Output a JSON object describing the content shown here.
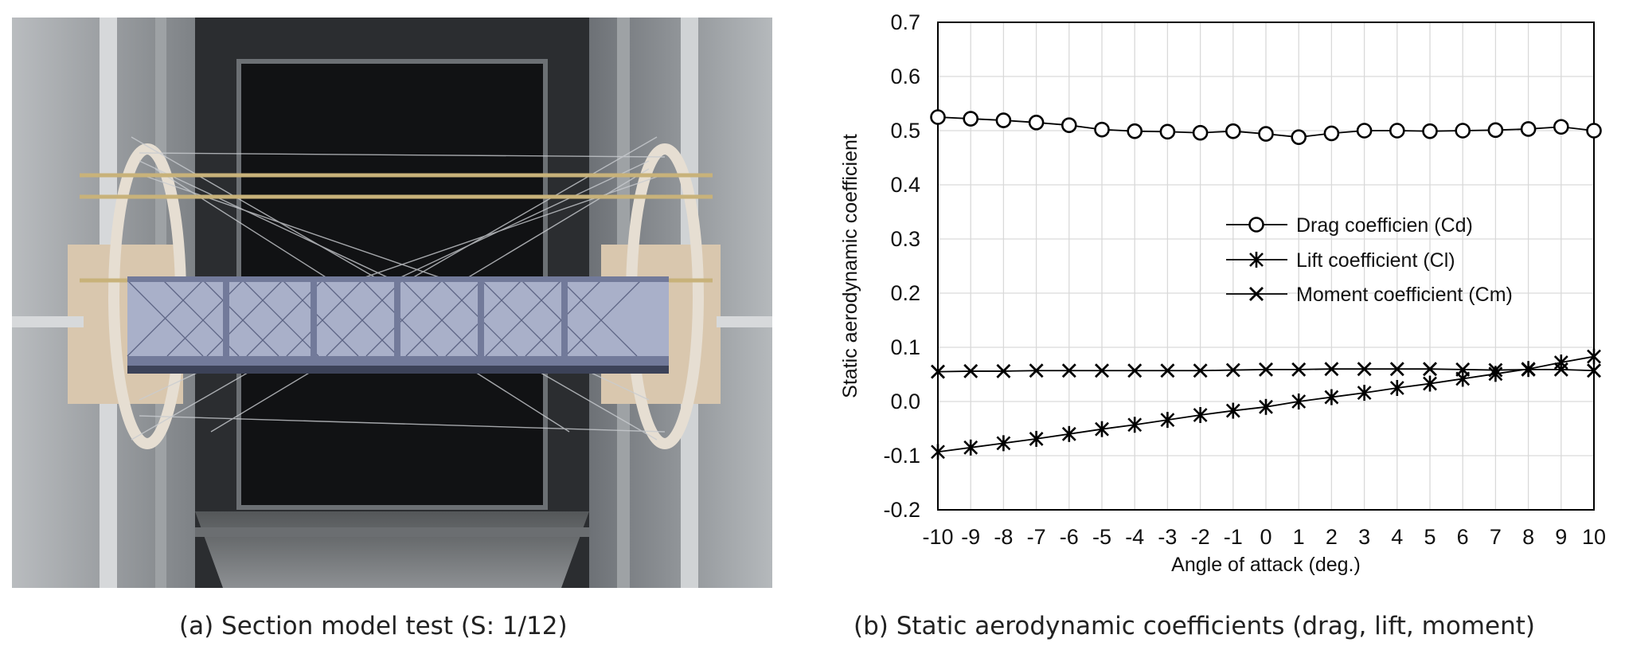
{
  "captions": {
    "a": "(a) Section model test (S: 1/12)",
    "b": "(b) Static aerodynamic coefficients (drag, lift, moment)"
  },
  "colors": {
    "series_line": "#000000",
    "grid": "#d9d9d9",
    "plot_border": "#000000",
    "photo_background": "#3a3d40"
  },
  "photo": {
    "subject": "wind-tunnel-section-model-photo"
  },
  "chart_data": {
    "type": "line",
    "title": "",
    "xlabel": "Angle of attack (deg.)",
    "ylabel": "Static aerodynamic coefficient",
    "x": [
      -10,
      -9,
      -8,
      -7,
      -6,
      -5,
      -4,
      -3,
      -2,
      -1,
      0,
      1,
      2,
      3,
      4,
      5,
      6,
      7,
      8,
      9,
      10
    ],
    "xlim": [
      -10,
      10
    ],
    "ylim": [
      -0.2,
      0.7
    ],
    "y_ticks": [
      "-0.2",
      "-0.1",
      "0.0",
      "0.1",
      "0.2",
      "0.3",
      "0.4",
      "0.5",
      "0.6",
      "0.7"
    ],
    "grid": true,
    "legend_position": "center-right",
    "series": [
      {
        "name": "Drag coefficien (Cd)",
        "marker": "circle",
        "values": [
          0.525,
          0.522,
          0.519,
          0.515,
          0.51,
          0.502,
          0.499,
          0.498,
          0.496,
          0.499,
          0.494,
          0.488,
          0.495,
          0.5,
          0.5,
          0.499,
          0.5,
          0.501,
          0.503,
          0.507,
          0.5
        ]
      },
      {
        "name": "Lift coefficient (Cl)",
        "marker": "asterisk",
        "values": [
          -0.093,
          -0.085,
          -0.077,
          -0.069,
          -0.06,
          -0.051,
          -0.043,
          -0.034,
          -0.025,
          -0.017,
          -0.01,
          0.0,
          0.008,
          0.016,
          0.025,
          0.033,
          0.042,
          0.051,
          0.06,
          0.072,
          0.083
        ]
      },
      {
        "name": "Moment coefficient (Cm)",
        "marker": "x",
        "values": [
          0.055,
          0.056,
          0.056,
          0.057,
          0.057,
          0.057,
          0.057,
          0.057,
          0.057,
          0.058,
          0.059,
          0.059,
          0.06,
          0.06,
          0.06,
          0.06,
          0.059,
          0.058,
          0.059,
          0.059,
          0.057
        ]
      }
    ]
  }
}
